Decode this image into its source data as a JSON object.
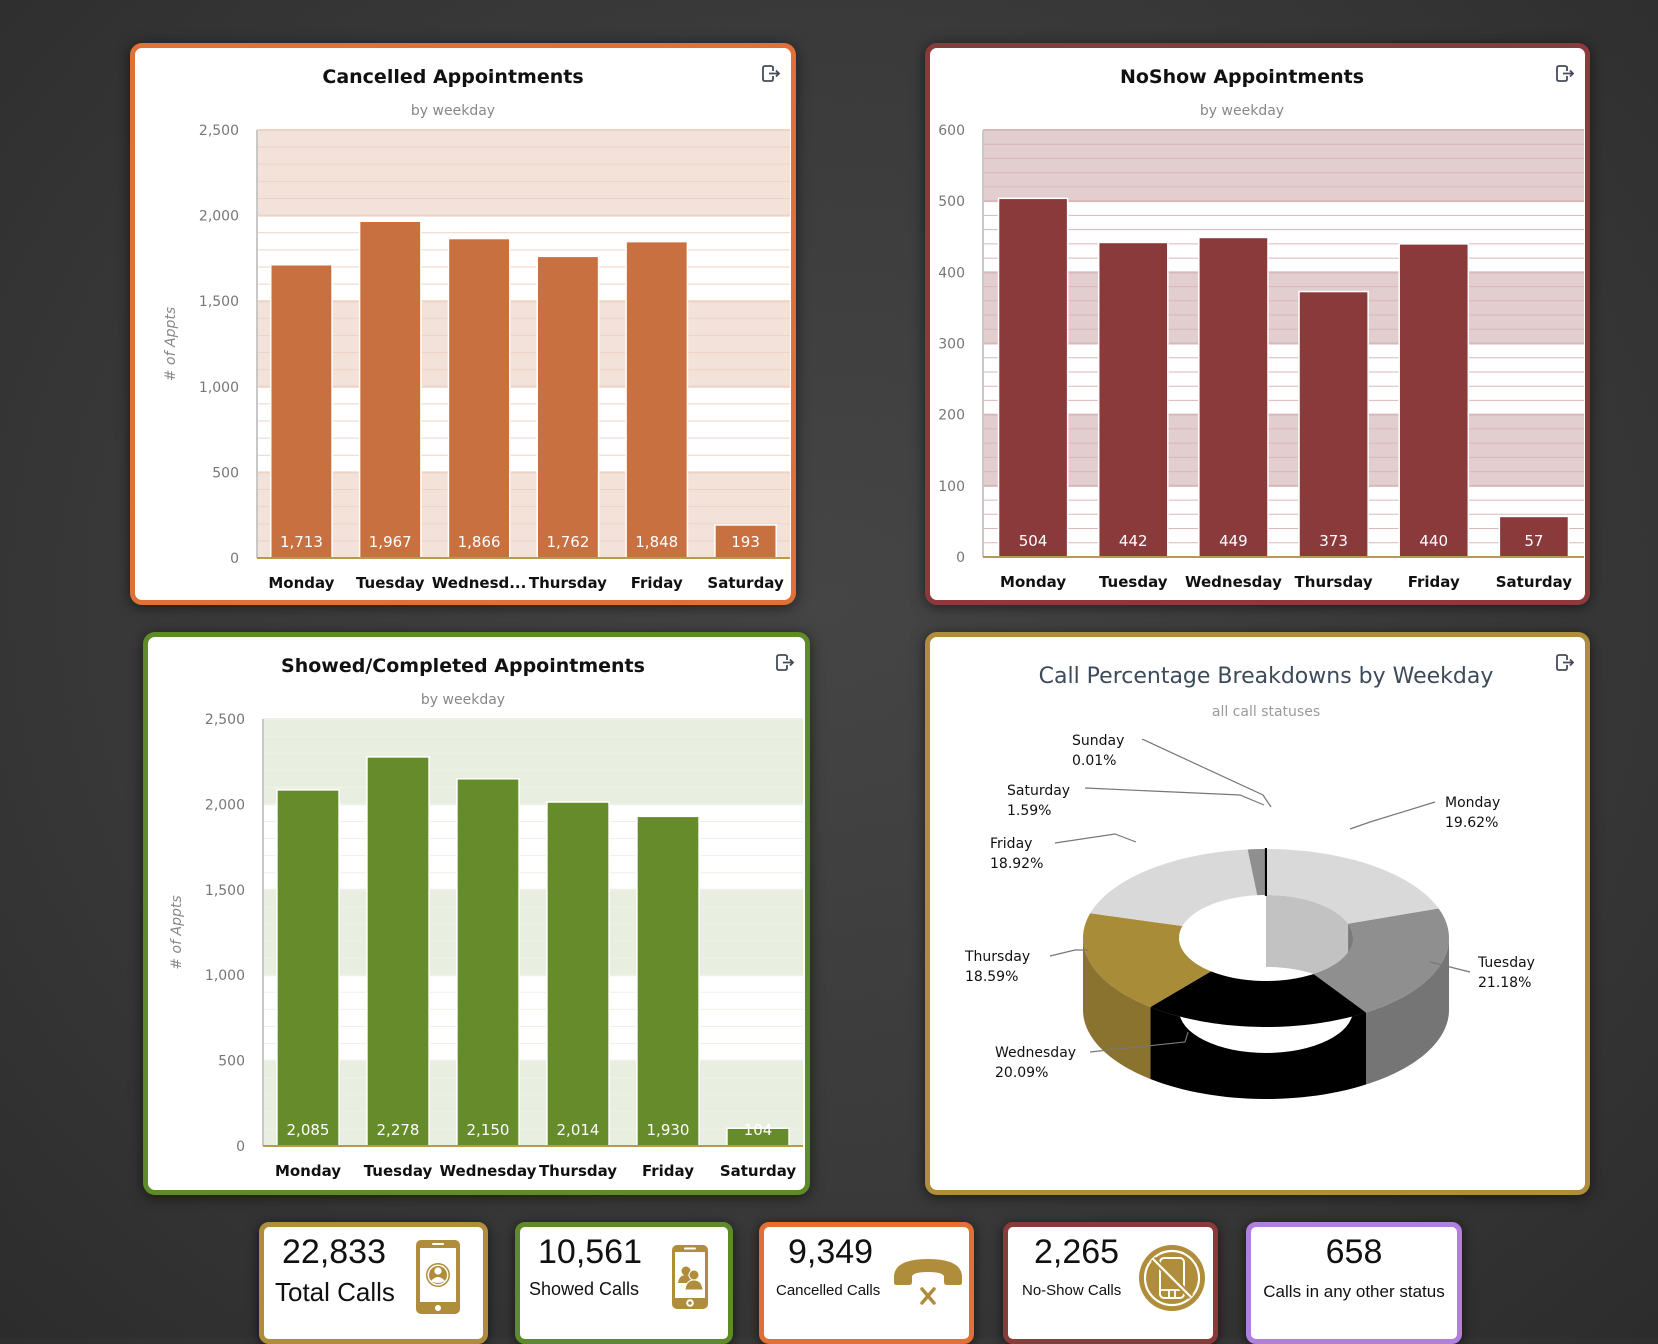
{
  "colors": {
    "cancelled": "#c87040",
    "cancelled_border": "#e07035",
    "noshow": "#8b3a3c",
    "noshow_border": "#8b3a3c",
    "showed": "#668b2a",
    "showed_border": "#5f8a2a",
    "gold": "#b08d3a",
    "purple": "#b07fe0"
  },
  "export_label": "Export",
  "chart_data": [
    {
      "id": "cancelled",
      "type": "bar",
      "title": "Cancelled Appointments",
      "subtitle": "by weekday",
      "xlabel": "",
      "ylabel": "# of Appts",
      "categories": [
        "Monday",
        "Tuesday",
        "Wednesd...",
        "Thursday",
        "Friday",
        "Saturday"
      ],
      "values": [
        1713,
        1967,
        1866,
        1762,
        1848,
        193
      ],
      "data_labels": [
        "1,713",
        "1,967",
        "1,866",
        "1,762",
        "1,848",
        "193"
      ],
      "ylim": [
        0,
        2500
      ],
      "yticks": [
        0,
        500,
        1000,
        1500,
        2000,
        2500
      ],
      "ytick_labels": [
        "0",
        "500",
        "1,000",
        "1,500",
        "2,000",
        "2,500"
      ],
      "grid": true
    },
    {
      "id": "noshow",
      "type": "bar",
      "title": "NoShow Appointments",
      "subtitle": "by weekday",
      "xlabel": "",
      "ylabel": "# of Appts",
      "categories": [
        "Monday",
        "Tuesday",
        "Wednesday",
        "Thursday",
        "Friday",
        "Saturday"
      ],
      "values": [
        504,
        442,
        449,
        373,
        440,
        57
      ],
      "data_labels": [
        "504",
        "442",
        "449",
        "373",
        "440",
        "57"
      ],
      "ylim": [
        0,
        600
      ],
      "yticks": [
        0,
        100,
        200,
        300,
        400,
        500,
        600
      ],
      "ytick_labels": [
        "0",
        "100",
        "200",
        "300",
        "400",
        "500",
        "600"
      ],
      "grid": true
    },
    {
      "id": "showed",
      "type": "bar",
      "title": "Showed/Completed Appointments",
      "subtitle": "by weekday",
      "xlabel": "",
      "ylabel": "# of Appts",
      "categories": [
        "Monday",
        "Tuesday",
        "Wednesday",
        "Thursday",
        "Friday",
        "Saturday"
      ],
      "values": [
        2085,
        2278,
        2150,
        2014,
        1930,
        104
      ],
      "data_labels": [
        "2,085",
        "2,278",
        "2,150",
        "2,014",
        "1,930",
        "104"
      ],
      "ylim": [
        0,
        2500
      ],
      "yticks": [
        0,
        500,
        1000,
        1500,
        2000,
        2500
      ],
      "ytick_labels": [
        "0",
        "500",
        "1,000",
        "1,500",
        "2,000",
        "2,500"
      ],
      "grid": true
    },
    {
      "id": "calls",
      "type": "pie",
      "title": "Call Percentage Breakdowns by Weekday",
      "subtitle": "all call statuses",
      "donut": true,
      "three_d": true,
      "slices": [
        {
          "name": "Monday",
          "value": 19.62,
          "label": "19.62%",
          "color": "#d9d9d9"
        },
        {
          "name": "Tuesday",
          "value": 21.18,
          "label": "21.18%",
          "color": "#8f8f8f"
        },
        {
          "name": "Wednesday",
          "value": 20.09,
          "label": "20.09%",
          "color": "#000000"
        },
        {
          "name": "Thursday",
          "value": 18.59,
          "label": "18.59%",
          "color": "#a88c38"
        },
        {
          "name": "Friday",
          "value": 18.92,
          "label": "18.92%",
          "color": "#d9d9d9"
        },
        {
          "name": "Saturday",
          "value": 1.59,
          "label": "1.59%",
          "color": "#8f8f8f"
        },
        {
          "name": "Sunday",
          "value": 0.01,
          "label": "0.01%",
          "color": "#000000"
        }
      ]
    }
  ],
  "stats": [
    {
      "value": "22,833",
      "label": "Total Calls",
      "icon": "phone-user-icon"
    },
    {
      "value": "10,561",
      "label": "Showed Calls",
      "icon": "phone-group-icon"
    },
    {
      "value": "9,349",
      "label": "Cancelled Calls",
      "icon": "hangup-phone-icon"
    },
    {
      "value": "2,265",
      "label": "No-Show Calls",
      "icon": "no-phone-icon"
    },
    {
      "value": "658",
      "label": "Calls in any other status",
      "icon": ""
    }
  ]
}
